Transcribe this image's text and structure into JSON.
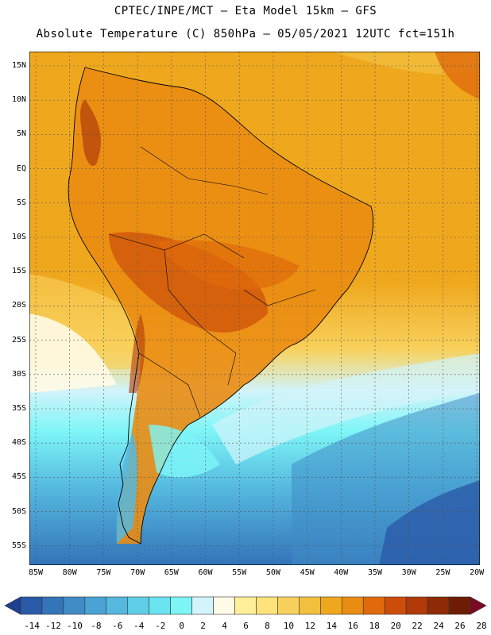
{
  "header": {
    "line1": "CPTEC/INPE/MCT –  Eta Model 15km – GFS",
    "line2": "Absolute Temperature (C) 850hPa – 05/05/2021 12UTC fct=151h"
  },
  "map": {
    "region": "South America",
    "lat_labels": [
      "15N",
      "10N",
      "5N",
      "EQ",
      "5S",
      "10S",
      "15S",
      "20S",
      "25S",
      "30S",
      "35S",
      "40S",
      "45S",
      "50S",
      "55S"
    ],
    "lon_labels": [
      "85W",
      "80W",
      "75W",
      "70W",
      "65W",
      "60W",
      "55W",
      "50W",
      "45W",
      "40W",
      "35W",
      "30W",
      "25W",
      "20W"
    ]
  },
  "colorbar": {
    "labels": [
      "-14",
      "-12",
      "-10",
      "-8",
      "-6",
      "-4",
      "-2",
      "0",
      "2",
      "4",
      "6",
      "8",
      "10",
      "12",
      "14",
      "16",
      "18",
      "20",
      "22",
      "24",
      "26",
      "28"
    ],
    "colors": [
      "#1f3f8f",
      "#2a5aa8",
      "#3474b9",
      "#3f8cc7",
      "#4aa3d4",
      "#55b9df",
      "#5fcfe8",
      "#6ae3f0",
      "#7df5f7",
      "#d2f4fa",
      "#fffbe6",
      "#ffee9a",
      "#fde37a",
      "#f8d15c",
      "#f2c03e",
      "#efa81e",
      "#ea8c12",
      "#e06a0c",
      "#cc4d0a",
      "#b13a08",
      "#8f2a06",
      "#6e1d04",
      "#7a0a24"
    ]
  }
}
